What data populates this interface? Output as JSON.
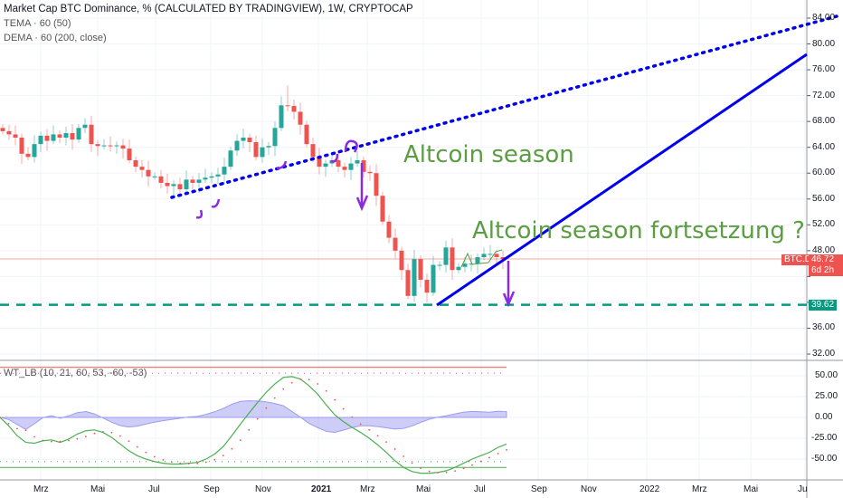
{
  "header": {
    "title": "Market Cap BTC Dominance, % (CALCULATED BY TRADINGVIEW), 1W, CRYPTOCAP",
    "indicators": [
      "TEMA · 60 (50)",
      "DEMA · 60 (200, close)"
    ]
  },
  "oscillator": {
    "label": "WT_LB (10, 21, 60, 53, -60, -53)"
  },
  "annotations": {
    "a1": "Altcoin season",
    "a2": "Altcoin season fortsetzung ?"
  },
  "price_tag": {
    "symbol": "BTC.D",
    "value": "46.72",
    "countdown": "6d 2h"
  },
  "support_tag": "39.62",
  "colors": {
    "up": "#26a69a",
    "down": "#ef5350",
    "trendline": "#0000ee",
    "annotation": "#5b9e42",
    "arrow": "#8a2be2",
    "support": "#089981",
    "wt1": "#4caf50",
    "wt2": "#ef5350",
    "wtdiff": "#9c9cf0"
  },
  "chart_data": {
    "type": "candlestick",
    "interval": "1W",
    "price_axis": {
      "ticks": [
        "84.00",
        "80.00",
        "76.00",
        "72.00",
        "68.00",
        "64.00",
        "60.00",
        "56.00",
        "52.00",
        "48.00",
        "44.00",
        "40.00",
        "36.00",
        "32.00"
      ],
      "range": [
        32,
        84
      ]
    },
    "time_axis": {
      "ticks": [
        "Mrz",
        "Mai",
        "Jul",
        "Sep",
        "Nov",
        "2021",
        "Mrz",
        "Mai",
        "Jul",
        "Sep",
        "Nov",
        "2022",
        "Mrz",
        "Mai",
        "Ju"
      ]
    },
    "closes": [
      66.5,
      66,
      65.5,
      63,
      62.5,
      64.5,
      65.8,
      65,
      66,
      65.5,
      66.2,
      65.2,
      67,
      67.5,
      64.5,
      64.2,
      64.3,
      64.2,
      64.3,
      63.8,
      62,
      61,
      60.5,
      59.5,
      59.5,
      58.5,
      58,
      58.3,
      57.5,
      59,
      58.5,
      59,
      59.3,
      59.5,
      59.8,
      61,
      63.5,
      65,
      65.5,
      64.8,
      62.5,
      64,
      64.2,
      67,
      70.5,
      70.4,
      69.5,
      67.5,
      64.5,
      62.5,
      61,
      61.5,
      62,
      61,
      60.5,
      61.5,
      62,
      60.2,
      60,
      56.5,
      52.5,
      50,
      48,
      45,
      41,
      46.7,
      43.5,
      41.5,
      45.8,
      45.8,
      48.5,
      45,
      45.5,
      46,
      46,
      47,
      47.5,
      47.5,
      47,
      46.72
    ],
    "first_open": 67,
    "last_price": 46.72,
    "support_level": 39.62,
    "oscillator": {
      "axis_ticks": [
        "50.00",
        "25.00",
        "0.00",
        "-25.00",
        "-50.00"
      ],
      "levels": [
        60,
        53,
        -53,
        -60
      ],
      "wt1": [
        0,
        -10,
        -22,
        -30,
        -31,
        -28,
        -27,
        -30,
        -26,
        -20,
        -16,
        -15,
        -18,
        -24,
        -32,
        -40,
        -46,
        -50,
        -53,
        -55,
        -56,
        -56,
        -55,
        -54,
        -50,
        -44,
        -35,
        -22,
        -8,
        5,
        18,
        30,
        40,
        48,
        49,
        46,
        38,
        28,
        15,
        3,
        -5,
        -12,
        -18,
        -25,
        -33,
        -42,
        -52,
        -60,
        -65,
        -67,
        -67,
        -66,
        -64,
        -60,
        -55,
        -50,
        -46,
        -42,
        -36,
        -32
      ]
    }
  }
}
